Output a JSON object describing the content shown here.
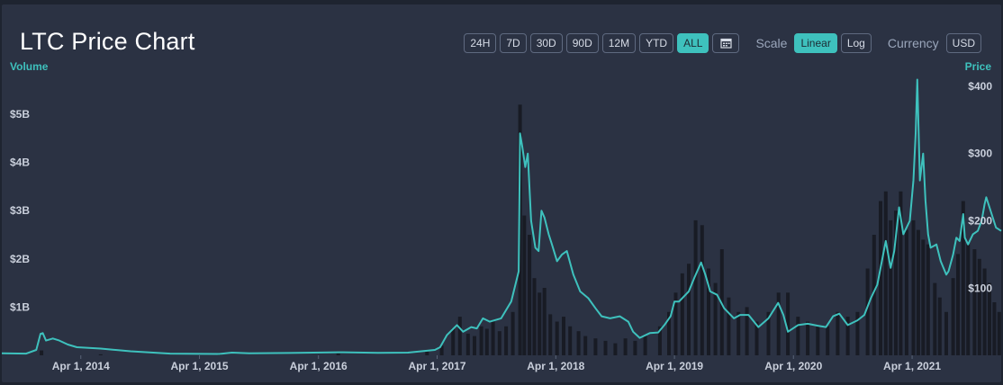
{
  "header": {
    "title": "LTC Price Chart",
    "ranges": [
      "24H",
      "7D",
      "30D",
      "90D",
      "12M",
      "YTD",
      "ALL"
    ],
    "active_range": "ALL",
    "scale_label": "Scale",
    "scales": [
      "Linear",
      "Log"
    ],
    "active_scale": "Linear",
    "currency_label": "Currency",
    "currency": "USD"
  },
  "colors": {
    "price_line": "#3ec1bd",
    "volume_bars": "#181b24",
    "accent": "#3ec1bd"
  },
  "chart_data": {
    "type": "line",
    "title": "LTC Price Chart",
    "x_type": "date",
    "xlim": [
      "2013-08-01",
      "2021-12-31"
    ],
    "x_ticks": [
      "2014-04-01",
      "2015-04-01",
      "2016-04-01",
      "2017-04-01",
      "2018-04-01",
      "2019-04-01",
      "2020-04-01",
      "2021-04-01"
    ],
    "x_tick_labels": [
      "Apr 1, 2014",
      "Apr 1, 2015",
      "Apr 1, 2016",
      "Apr 1, 2017",
      "Apr 1, 2018",
      "Apr 1, 2019",
      "Apr 1, 2020",
      "Apr 1, 2021"
    ],
    "y_left_label": "Volume",
    "y_left_ticks": [
      1000000000,
      2000000000,
      3000000000,
      4000000000,
      5000000000
    ],
    "y_left_tick_labels": [
      "$1B",
      "$2B",
      "$3B",
      "$4B",
      "$5B"
    ],
    "y_left_lim": [
      0,
      5600000000
    ],
    "y_right_label": "Price",
    "y_right_ticks": [
      100,
      200,
      300,
      400
    ],
    "y_right_tick_labels": [
      "$100",
      "$200",
      "$300",
      "$400"
    ],
    "y_right_lim": [
      0,
      420
    ],
    "series": [
      {
        "type": "line",
        "axis": "right",
        "points": [
          [
            "2013-08-01",
            3
          ],
          [
            "2013-10-15",
            2.5
          ],
          [
            "2013-11-15",
            8
          ],
          [
            "2013-11-28",
            32
          ],
          [
            "2013-12-05",
            33
          ],
          [
            "2013-12-15",
            22
          ],
          [
            "2014-01-05",
            25
          ],
          [
            "2014-01-25",
            22
          ],
          [
            "2014-02-20",
            16
          ],
          [
            "2014-03-20",
            12
          ],
          [
            "2014-06-01",
            10
          ],
          [
            "2014-09-01",
            6
          ],
          [
            "2015-01-01",
            2.5
          ],
          [
            "2015-06-01",
            2
          ],
          [
            "2015-07-10",
            4
          ],
          [
            "2015-09-01",
            3
          ],
          [
            "2016-01-01",
            3.5
          ],
          [
            "2016-06-01",
            4.5
          ],
          [
            "2016-10-01",
            3.8
          ],
          [
            "2017-01-01",
            4
          ],
          [
            "2017-03-25",
            8
          ],
          [
            "2017-04-10",
            12
          ],
          [
            "2017-05-01",
            30
          ],
          [
            "2017-06-01",
            45
          ],
          [
            "2017-06-20",
            35
          ],
          [
            "2017-07-15",
            42
          ],
          [
            "2017-08-01",
            40
          ],
          [
            "2017-08-20",
            55
          ],
          [
            "2017-09-10",
            50
          ],
          [
            "2017-10-15",
            55
          ],
          [
            "2017-11-15",
            80
          ],
          [
            "2017-12-08",
            125
          ],
          [
            "2017-12-12",
            330
          ],
          [
            "2017-12-19",
            310
          ],
          [
            "2017-12-28",
            280
          ],
          [
            "2018-01-05",
            300
          ],
          [
            "2018-01-15",
            200
          ],
          [
            "2018-01-28",
            160
          ],
          [
            "2018-02-07",
            155
          ],
          [
            "2018-02-16",
            215
          ],
          [
            "2018-02-25",
            205
          ],
          [
            "2018-03-10",
            180
          ],
          [
            "2018-03-20",
            165
          ],
          [
            "2018-04-05",
            140
          ],
          [
            "2018-04-20",
            150
          ],
          [
            "2018-05-05",
            155
          ],
          [
            "2018-05-25",
            120
          ],
          [
            "2018-06-15",
            95
          ],
          [
            "2018-07-10",
            85
          ],
          [
            "2018-08-01",
            70
          ],
          [
            "2018-08-20",
            58
          ],
          [
            "2018-09-15",
            55
          ],
          [
            "2018-10-15",
            58
          ],
          [
            "2018-11-10",
            50
          ],
          [
            "2018-11-25",
            35
          ],
          [
            "2018-12-15",
            26
          ],
          [
            "2019-01-15",
            33
          ],
          [
            "2019-02-10",
            34
          ],
          [
            "2019-03-01",
            45
          ],
          [
            "2019-03-20",
            58
          ],
          [
            "2019-04-01",
            80
          ],
          [
            "2019-04-15",
            80
          ],
          [
            "2019-05-15",
            95
          ],
          [
            "2019-06-01",
            115
          ],
          [
            "2019-06-22",
            138
          ],
          [
            "2019-07-05",
            120
          ],
          [
            "2019-07-20",
            95
          ],
          [
            "2019-08-10",
            90
          ],
          [
            "2019-09-01",
            70
          ],
          [
            "2019-10-01",
            55
          ],
          [
            "2019-10-20",
            60
          ],
          [
            "2019-11-15",
            60
          ],
          [
            "2019-12-15",
            42
          ],
          [
            "2020-01-15",
            55
          ],
          [
            "2020-02-14",
            78
          ],
          [
            "2020-03-01",
            60
          ],
          [
            "2020-03-15",
            35
          ],
          [
            "2020-04-15",
            45
          ],
          [
            "2020-05-15",
            47
          ],
          [
            "2020-06-15",
            44
          ],
          [
            "2020-07-10",
            42
          ],
          [
            "2020-08-01",
            58
          ],
          [
            "2020-08-20",
            62
          ],
          [
            "2020-09-15",
            45
          ],
          [
            "2020-10-15",
            52
          ],
          [
            "2020-11-05",
            60
          ],
          [
            "2020-11-25",
            85
          ],
          [
            "2020-12-15",
            105
          ],
          [
            "2021-01-10",
            170
          ],
          [
            "2021-01-25",
            130
          ],
          [
            "2021-02-05",
            155
          ],
          [
            "2021-02-20",
            220
          ],
          [
            "2021-03-05",
            180
          ],
          [
            "2021-03-25",
            200
          ],
          [
            "2021-04-05",
            260
          ],
          [
            "2021-04-12",
            330
          ],
          [
            "2021-04-17",
            410
          ],
          [
            "2021-04-25",
            260
          ],
          [
            "2021-05-05",
            300
          ],
          [
            "2021-05-12",
            230
          ],
          [
            "2021-05-20",
            180
          ],
          [
            "2021-05-28",
            160
          ],
          [
            "2021-06-15",
            165
          ],
          [
            "2021-06-28",
            140
          ],
          [
            "2021-07-15",
            120
          ],
          [
            "2021-07-22",
            125
          ],
          [
            "2021-08-05",
            150
          ],
          [
            "2021-08-15",
            175
          ],
          [
            "2021-08-25",
            170
          ],
          [
            "2021-09-05",
            210
          ],
          [
            "2021-09-10",
            175
          ],
          [
            "2021-09-20",
            165
          ],
          [
            "2021-10-05",
            180
          ],
          [
            "2021-10-20",
            185
          ],
          [
            "2021-11-01",
            200
          ],
          [
            "2021-11-10",
            225
          ],
          [
            "2021-11-15",
            235
          ],
          [
            "2021-11-25",
            220
          ],
          [
            "2021-12-15",
            190
          ],
          [
            "2021-12-31",
            185
          ]
        ]
      },
      {
        "type": "bar",
        "axis": "left",
        "points": [
          [
            "2013-12-01",
            100000000
          ],
          [
            "2014-06-01",
            20000000
          ],
          [
            "2015-06-01",
            30000000
          ],
          [
            "2016-06-01",
            40000000
          ],
          [
            "2017-03-01",
            100000000
          ],
          [
            "2017-04-15",
            200000000
          ],
          [
            "2017-05-20",
            550000000
          ],
          [
            "2017-06-10",
            800000000
          ],
          [
            "2017-07-05",
            450000000
          ],
          [
            "2017-07-25",
            400000000
          ],
          [
            "2017-08-15",
            600000000
          ],
          [
            "2017-09-01",
            550000000
          ],
          [
            "2017-09-20",
            700000000
          ],
          [
            "2017-10-10",
            500000000
          ],
          [
            "2017-10-30",
            600000000
          ],
          [
            "2017-11-20",
            900000000
          ],
          [
            "2017-12-12",
            5200000000
          ],
          [
            "2017-12-25",
            2900000000
          ],
          [
            "2018-01-10",
            2500000000
          ],
          [
            "2018-01-25",
            1600000000
          ],
          [
            "2018-02-10",
            1300000000
          ],
          [
            "2018-02-25",
            1400000000
          ],
          [
            "2018-03-15",
            850000000
          ],
          [
            "2018-04-05",
            700000000
          ],
          [
            "2018-04-25",
            800000000
          ],
          [
            "2018-05-15",
            600000000
          ],
          [
            "2018-06-10",
            500000000
          ],
          [
            "2018-07-01",
            400000000
          ],
          [
            "2018-08-01",
            350000000
          ],
          [
            "2018-09-01",
            300000000
          ],
          [
            "2018-10-01",
            250000000
          ],
          [
            "2018-11-01",
            350000000
          ],
          [
            "2018-12-01",
            300000000
          ],
          [
            "2019-01-01",
            400000000
          ],
          [
            "2019-02-15",
            600000000
          ],
          [
            "2019-03-15",
            900000000
          ],
          [
            "2019-04-05",
            1300000000
          ],
          [
            "2019-04-25",
            1700000000
          ],
          [
            "2019-05-15",
            1900000000
          ],
          [
            "2019-06-05",
            2800000000
          ],
          [
            "2019-06-25",
            2700000000
          ],
          [
            "2019-07-15",
            1800000000
          ],
          [
            "2019-08-05",
            1500000000
          ],
          [
            "2019-08-25",
            2200000000
          ],
          [
            "2019-09-15",
            1200000000
          ],
          [
            "2019-10-15",
            900000000
          ],
          [
            "2019-11-10",
            1000000000
          ],
          [
            "2019-12-10",
            700000000
          ],
          [
            "2020-01-15",
            900000000
          ],
          [
            "2020-02-15",
            1300000000
          ],
          [
            "2020-03-15",
            1300000000
          ],
          [
            "2020-04-15",
            800000000
          ],
          [
            "2020-05-15",
            700000000
          ],
          [
            "2020-06-15",
            600000000
          ],
          [
            "2020-07-15",
            600000000
          ],
          [
            "2020-08-15",
            900000000
          ],
          [
            "2020-09-15",
            800000000
          ],
          [
            "2020-10-15",
            900000000
          ],
          [
            "2020-11-15",
            1800000000
          ],
          [
            "2020-12-05",
            2500000000
          ],
          [
            "2020-12-25",
            3200000000
          ],
          [
            "2021-01-10",
            3400000000
          ],
          [
            "2021-01-25",
            2800000000
          ],
          [
            "2021-02-10",
            3000000000
          ],
          [
            "2021-02-25",
            3400000000
          ],
          [
            "2021-03-15",
            2600000000
          ],
          [
            "2021-04-05",
            2800000000
          ],
          [
            "2021-04-20",
            2600000000
          ],
          [
            "2021-05-05",
            2400000000
          ],
          [
            "2021-05-20",
            2300000000
          ],
          [
            "2021-06-10",
            1500000000
          ],
          [
            "2021-06-25",
            1200000000
          ],
          [
            "2021-07-15",
            900000000
          ],
          [
            "2021-08-05",
            1600000000
          ],
          [
            "2021-08-20",
            2100000000
          ],
          [
            "2021-09-05",
            3200000000
          ],
          [
            "2021-09-20",
            2300000000
          ],
          [
            "2021-10-10",
            2200000000
          ],
          [
            "2021-10-25",
            2000000000
          ],
          [
            "2021-11-10",
            1800000000
          ],
          [
            "2021-11-25",
            1500000000
          ],
          [
            "2021-12-10",
            1100000000
          ],
          [
            "2021-12-25",
            900000000
          ]
        ]
      }
    ],
    "grid": false,
    "legend": "none"
  }
}
